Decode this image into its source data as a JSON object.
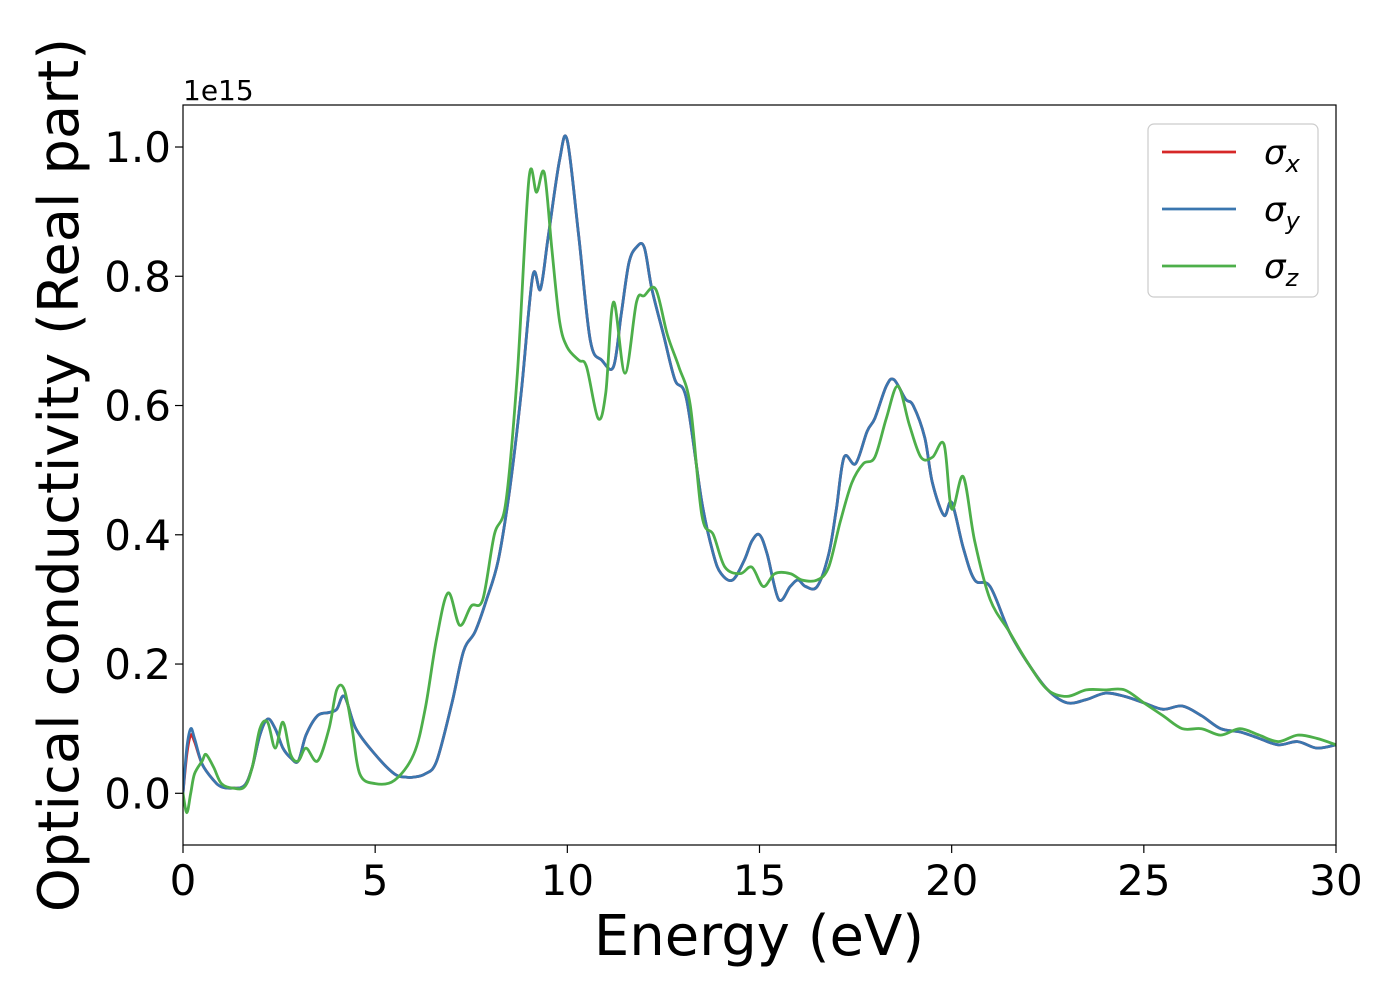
{
  "chart_data": {
    "type": "line",
    "title": "",
    "xlabel": "Energy (eV)",
    "ylabel": "Optical conductivity (Real part)",
    "y_offset_text": "1e15",
    "xlim": [
      0,
      30
    ],
    "ylim": [
      -0.08,
      1.065
    ],
    "xticks": [
      0,
      5,
      10,
      15,
      20,
      25,
      30
    ],
    "xtick_labels": [
      "0",
      "5",
      "10",
      "15",
      "20",
      "25",
      "30"
    ],
    "yticks": [
      0.0,
      0.2,
      0.4,
      0.6,
      0.8,
      1.0
    ],
    "ytick_labels": [
      "0.0",
      "0.2",
      "0.4",
      "0.6",
      "0.8",
      "1.0"
    ],
    "grid": false,
    "legend_position": "top-right",
    "series": [
      {
        "name": "σx",
        "symbol": "σ",
        "subscript": "x",
        "color": "#d62728",
        "x": [
          0,
          0.1,
          0.2,
          0.3,
          0.5,
          0.8,
          1.0,
          1.3,
          1.6,
          1.8,
          2.0,
          2.2,
          2.4,
          2.6,
          2.8,
          3.0,
          3.2,
          3.5,
          3.8,
          4.0,
          4.2,
          4.5,
          5.0,
          5.5,
          5.8,
          6.0,
          6.3,
          6.6,
          7.0,
          7.3,
          7.6,
          7.9,
          8.2,
          8.5,
          8.8,
          9.1,
          9.3,
          9.5,
          9.8,
          10.0,
          10.3,
          10.6,
          10.9,
          11.2,
          11.4,
          11.6,
          11.8,
          12.0,
          12.2,
          12.5,
          12.8,
          13.1,
          13.5,
          13.8,
          14.0,
          14.3,
          14.6,
          14.8,
          15.0,
          15.2,
          15.5,
          15.8,
          16.0,
          16.2,
          16.5,
          16.8,
          17.0,
          17.2,
          17.5,
          17.8,
          18.0,
          18.3,
          18.5,
          18.8,
          19.0,
          19.3,
          19.5,
          19.8,
          20.0,
          20.3,
          20.6,
          21.0,
          21.5,
          22.0,
          22.5,
          23.0,
          23.5,
          24.0,
          24.5,
          25.0,
          25.5,
          26.0,
          26.5,
          27.0,
          27.5,
          28.0,
          28.5,
          29.0,
          29.5,
          30.0
        ],
        "y": [
          0.0,
          0.06,
          0.09,
          0.08,
          0.045,
          0.02,
          0.01,
          0.008,
          0.012,
          0.04,
          0.09,
          0.115,
          0.1,
          0.07,
          0.055,
          0.05,
          0.09,
          0.12,
          0.125,
          0.13,
          0.15,
          0.1,
          0.06,
          0.03,
          0.025,
          0.025,
          0.03,
          0.05,
          0.14,
          0.22,
          0.25,
          0.3,
          0.36,
          0.47,
          0.62,
          0.8,
          0.78,
          0.86,
          0.98,
          1.01,
          0.86,
          0.7,
          0.67,
          0.66,
          0.74,
          0.82,
          0.845,
          0.845,
          0.78,
          0.71,
          0.64,
          0.61,
          0.45,
          0.37,
          0.34,
          0.33,
          0.36,
          0.39,
          0.4,
          0.37,
          0.3,
          0.32,
          0.33,
          0.32,
          0.32,
          0.37,
          0.44,
          0.52,
          0.51,
          0.56,
          0.58,
          0.63,
          0.64,
          0.61,
          0.6,
          0.55,
          0.48,
          0.43,
          0.45,
          0.38,
          0.33,
          0.32,
          0.25,
          0.2,
          0.16,
          0.14,
          0.145,
          0.155,
          0.15,
          0.14,
          0.13,
          0.135,
          0.12,
          0.1,
          0.095,
          0.085,
          0.075,
          0.08,
          0.07,
          0.075
        ]
      },
      {
        "name": "σy",
        "symbol": "σ",
        "subscript": "y",
        "color": "#3a76af",
        "x": [
          0,
          0.1,
          0.2,
          0.3,
          0.5,
          0.8,
          1.0,
          1.3,
          1.6,
          1.8,
          2.0,
          2.2,
          2.4,
          2.6,
          2.8,
          3.0,
          3.2,
          3.5,
          3.8,
          4.0,
          4.2,
          4.5,
          5.0,
          5.5,
          5.8,
          6.0,
          6.3,
          6.6,
          7.0,
          7.3,
          7.6,
          7.9,
          8.2,
          8.5,
          8.8,
          9.1,
          9.3,
          9.5,
          9.8,
          10.0,
          10.3,
          10.6,
          10.9,
          11.2,
          11.4,
          11.6,
          11.8,
          12.0,
          12.2,
          12.5,
          12.8,
          13.1,
          13.5,
          13.8,
          14.0,
          14.3,
          14.6,
          14.8,
          15.0,
          15.2,
          15.5,
          15.8,
          16.0,
          16.2,
          16.5,
          16.8,
          17.0,
          17.2,
          17.5,
          17.8,
          18.0,
          18.3,
          18.5,
          18.8,
          19.0,
          19.3,
          19.5,
          19.8,
          20.0,
          20.3,
          20.6,
          21.0,
          21.5,
          22.0,
          22.5,
          23.0,
          23.5,
          24.0,
          24.5,
          25.0,
          25.5,
          26.0,
          26.5,
          27.0,
          27.5,
          28.0,
          28.5,
          29.0,
          29.5,
          30.0
        ],
        "y": [
          0.0,
          0.07,
          0.1,
          0.085,
          0.045,
          0.02,
          0.01,
          0.008,
          0.012,
          0.04,
          0.09,
          0.115,
          0.1,
          0.07,
          0.055,
          0.05,
          0.09,
          0.12,
          0.125,
          0.13,
          0.15,
          0.1,
          0.06,
          0.03,
          0.025,
          0.025,
          0.03,
          0.05,
          0.14,
          0.22,
          0.25,
          0.3,
          0.36,
          0.47,
          0.62,
          0.8,
          0.78,
          0.86,
          0.98,
          1.01,
          0.86,
          0.7,
          0.67,
          0.66,
          0.74,
          0.82,
          0.845,
          0.845,
          0.78,
          0.71,
          0.64,
          0.61,
          0.45,
          0.37,
          0.34,
          0.33,
          0.36,
          0.39,
          0.4,
          0.37,
          0.3,
          0.32,
          0.33,
          0.32,
          0.32,
          0.37,
          0.44,
          0.52,
          0.51,
          0.56,
          0.58,
          0.63,
          0.64,
          0.61,
          0.6,
          0.55,
          0.48,
          0.43,
          0.45,
          0.38,
          0.33,
          0.32,
          0.25,
          0.2,
          0.16,
          0.14,
          0.145,
          0.155,
          0.15,
          0.14,
          0.13,
          0.135,
          0.12,
          0.1,
          0.095,
          0.085,
          0.075,
          0.08,
          0.07,
          0.075
        ]
      },
      {
        "name": "σz",
        "symbol": "σ",
        "subscript": "z",
        "color": "#4daf4a",
        "x": [
          0,
          0.1,
          0.2,
          0.3,
          0.5,
          0.6,
          0.8,
          1.0,
          1.3,
          1.6,
          1.8,
          2.0,
          2.2,
          2.4,
          2.6,
          2.8,
          3.0,
          3.2,
          3.5,
          3.8,
          4.0,
          4.2,
          4.4,
          4.6,
          5.0,
          5.5,
          6.0,
          6.3,
          6.6,
          6.9,
          7.2,
          7.5,
          7.8,
          8.1,
          8.4,
          8.7,
          9.0,
          9.2,
          9.4,
          9.6,
          9.8,
          10.0,
          10.3,
          10.5,
          10.8,
          11.0,
          11.2,
          11.5,
          11.8,
          12.0,
          12.3,
          12.6,
          12.9,
          13.2,
          13.5,
          13.8,
          14.1,
          14.5,
          14.8,
          15.1,
          15.4,
          15.8,
          16.1,
          16.5,
          16.8,
          17.1,
          17.4,
          17.7,
          18.0,
          18.3,
          18.6,
          18.9,
          19.2,
          19.5,
          19.8,
          20.0,
          20.3,
          20.6,
          21.0,
          21.5,
          22.0,
          22.5,
          23.0,
          23.5,
          24.0,
          24.5,
          25.0,
          25.5,
          26.0,
          26.5,
          27.0,
          27.5,
          28.0,
          28.5,
          29.0,
          29.5,
          30.0
        ],
        "y": [
          0.0,
          -0.03,
          0.0,
          0.03,
          0.05,
          0.06,
          0.04,
          0.015,
          0.008,
          0.01,
          0.04,
          0.1,
          0.11,
          0.07,
          0.11,
          0.06,
          0.05,
          0.07,
          0.05,
          0.1,
          0.16,
          0.16,
          0.1,
          0.03,
          0.015,
          0.02,
          0.06,
          0.13,
          0.24,
          0.31,
          0.26,
          0.29,
          0.3,
          0.4,
          0.45,
          0.65,
          0.95,
          0.93,
          0.96,
          0.84,
          0.73,
          0.69,
          0.67,
          0.66,
          0.58,
          0.62,
          0.76,
          0.65,
          0.76,
          0.77,
          0.78,
          0.71,
          0.66,
          0.6,
          0.43,
          0.4,
          0.35,
          0.34,
          0.35,
          0.32,
          0.34,
          0.34,
          0.33,
          0.33,
          0.35,
          0.42,
          0.48,
          0.51,
          0.52,
          0.58,
          0.63,
          0.57,
          0.52,
          0.52,
          0.54,
          0.44,
          0.49,
          0.39,
          0.3,
          0.25,
          0.2,
          0.16,
          0.15,
          0.16,
          0.16,
          0.16,
          0.14,
          0.12,
          0.1,
          0.1,
          0.09,
          0.1,
          0.09,
          0.08,
          0.09,
          0.085,
          0.075
        ]
      }
    ]
  }
}
